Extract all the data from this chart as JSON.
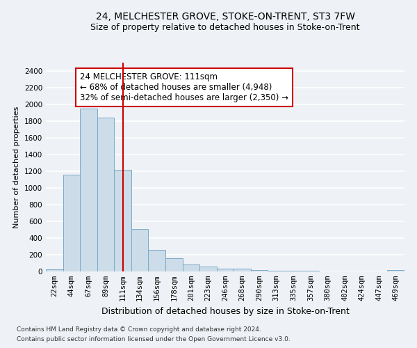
{
  "title": "24, MELCHESTER GROVE, STOKE-ON-TRENT, ST3 7FW",
  "subtitle": "Size of property relative to detached houses in Stoke-on-Trent",
  "xlabel": "Distribution of detached houses by size in Stoke-on-Trent",
  "ylabel": "Number of detached properties",
  "bar_labels": [
    "22sqm",
    "44sqm",
    "67sqm",
    "89sqm",
    "111sqm",
    "134sqm",
    "156sqm",
    "178sqm",
    "201sqm",
    "223sqm",
    "246sqm",
    "268sqm",
    "290sqm",
    "313sqm",
    "335sqm",
    "357sqm",
    "380sqm",
    "402sqm",
    "424sqm",
    "447sqm",
    "469sqm"
  ],
  "bar_values": [
    25,
    1155,
    1950,
    1840,
    1220,
    510,
    260,
    155,
    80,
    55,
    35,
    35,
    18,
    8,
    5,
    5,
    3,
    3,
    3,
    3,
    18
  ],
  "bar_color": "#ccdce8",
  "bar_edge_color": "#7aaac8",
  "vline_x": 4,
  "vline_color": "#cc0000",
  "annotation_text": "24 MELCHESTER GROVE: 111sqm\n← 68% of detached houses are smaller (4,948)\n32% of semi-detached houses are larger (2,350) →",
  "annotation_box_color": "white",
  "annotation_box_edge_color": "#cc0000",
  "ylim": [
    0,
    2500
  ],
  "yticks": [
    0,
    200,
    400,
    600,
    800,
    1000,
    1200,
    1400,
    1600,
    1800,
    2000,
    2200,
    2400
  ],
  "footnote1": "Contains HM Land Registry data © Crown copyright and database right 2024.",
  "footnote2": "Contains public sector information licensed under the Open Government Licence v3.0.",
  "bg_color": "#eef2f6",
  "grid_color": "#ffffff",
  "title_fontsize": 10,
  "subtitle_fontsize": 9,
  "xlabel_fontsize": 9,
  "ylabel_fontsize": 8,
  "tick_fontsize": 7.5,
  "annotation_fontsize": 8.5,
  "footnote_fontsize": 6.5
}
